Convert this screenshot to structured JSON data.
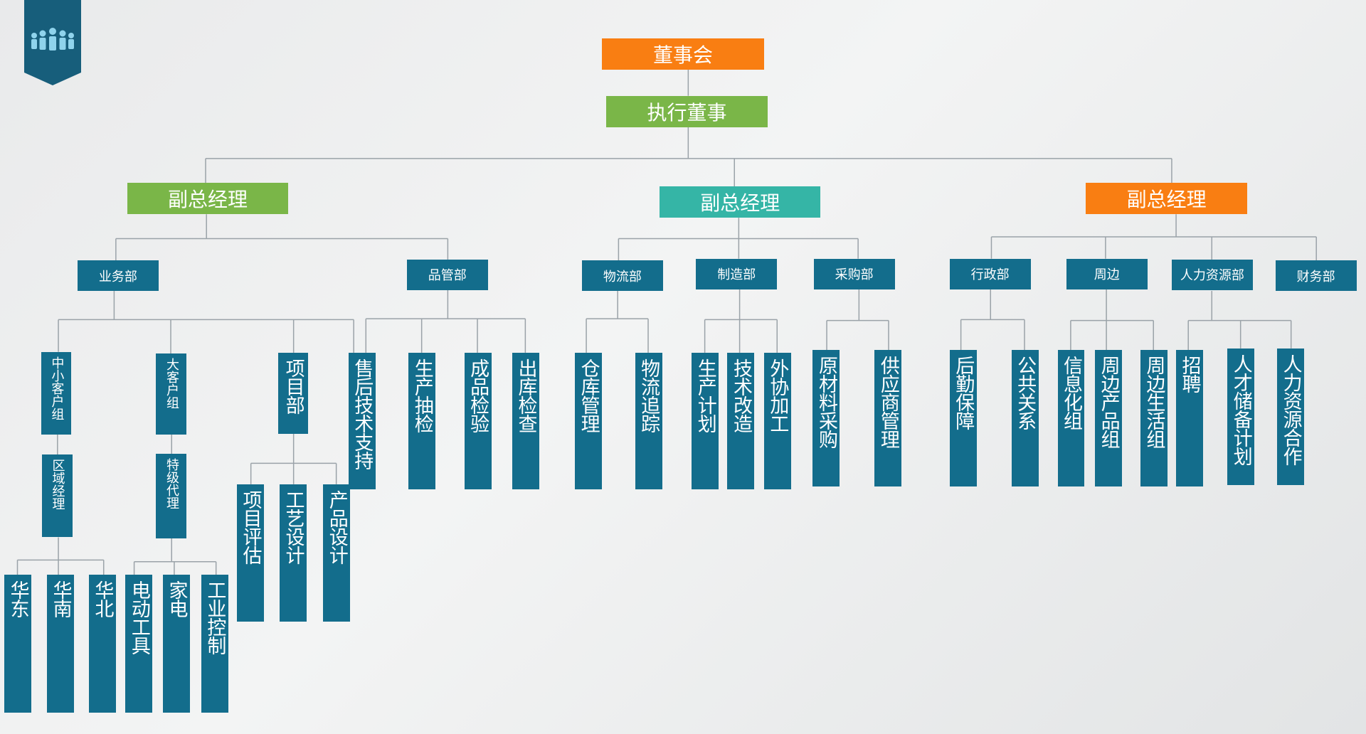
{
  "colors": {
    "orange": "#f97e12",
    "green": "#7ab648",
    "teal": "#35b5a6",
    "blue": "#136d8c",
    "line": "#9aa2a8",
    "badge": "#175e7b"
  },
  "badge": {
    "icon": "people-icon"
  },
  "nodes": [
    {
      "id": "board",
      "label": "董事会",
      "kind": "lvl0",
      "color": "orange"
    },
    {
      "id": "exec",
      "label": "执行董事",
      "kind": "lvl1",
      "color": "green"
    },
    {
      "id": "vp1",
      "label": "副总经理",
      "kind": "lvl2",
      "color": "green"
    },
    {
      "id": "vp2",
      "label": "副总经理",
      "kind": "lvl2",
      "color": "teal"
    },
    {
      "id": "vp3",
      "label": "副总经理",
      "kind": "lvl2",
      "color": "orange"
    },
    {
      "id": "yewu",
      "label": "业务部",
      "kind": "dept",
      "color": "blue"
    },
    {
      "id": "pinguan",
      "label": "品管部",
      "kind": "dept",
      "color": "blue"
    },
    {
      "id": "wuliu",
      "label": "物流部",
      "kind": "dept",
      "color": "blue"
    },
    {
      "id": "zhizao",
      "label": "制造部",
      "kind": "dept",
      "color": "blue"
    },
    {
      "id": "caigou",
      "label": "采购部",
      "kind": "dept",
      "color": "blue"
    },
    {
      "id": "xingzheng",
      "label": "行政部",
      "kind": "dept",
      "color": "blue"
    },
    {
      "id": "zhoubian",
      "label": "周边",
      "kind": "dept",
      "color": "blue"
    },
    {
      "id": "renli",
      "label": "人力资源部",
      "kind": "dept",
      "color": "blue"
    },
    {
      "id": "caiwu",
      "label": "财务部",
      "kind": "dept",
      "color": "blue"
    },
    {
      "id": "zhongxiao",
      "label": "中小客户组",
      "kind": "vsmall",
      "color": "blue"
    },
    {
      "id": "quyu",
      "label": "区域经理",
      "kind": "vsmall",
      "color": "blue"
    },
    {
      "id": "huadong",
      "label": "华东",
      "kind": "v",
      "color": "blue"
    },
    {
      "id": "huanan",
      "label": "华南",
      "kind": "v",
      "color": "blue"
    },
    {
      "id": "huabei",
      "label": "华北",
      "kind": "v",
      "color": "blue"
    },
    {
      "id": "dakehu",
      "label": "大客户组",
      "kind": "vsmall",
      "color": "blue"
    },
    {
      "id": "teji",
      "label": "特级代理",
      "kind": "vsmall",
      "color": "blue"
    },
    {
      "id": "diandong",
      "label": "电动工具",
      "kind": "v",
      "color": "blue"
    },
    {
      "id": "jiadian",
      "label": "家电",
      "kind": "v",
      "color": "blue"
    },
    {
      "id": "gongye",
      "label": "工业控制",
      "kind": "v",
      "color": "blue"
    },
    {
      "id": "xiangmubu",
      "label": "项目部",
      "kind": "v",
      "color": "blue"
    },
    {
      "id": "pinggu",
      "label": "项目评估",
      "kind": "v",
      "color": "blue"
    },
    {
      "id": "gongyi",
      "label": "工艺设计",
      "kind": "v",
      "color": "blue"
    },
    {
      "id": "chanpinsj",
      "label": "产品设计",
      "kind": "v",
      "color": "blue"
    },
    {
      "id": "shouhou",
      "label": "售后技术支持",
      "kind": "v",
      "color": "blue"
    },
    {
      "id": "choujian",
      "label": "生产抽检",
      "kind": "v",
      "color": "blue"
    },
    {
      "id": "chengpin",
      "label": "成品检验",
      "kind": "v",
      "color": "blue"
    },
    {
      "id": "chuku",
      "label": "出库检查",
      "kind": "v",
      "color": "blue"
    },
    {
      "id": "cangku",
      "label": "仓库管理",
      "kind": "v",
      "color": "blue"
    },
    {
      "id": "zhuizong",
      "label": "物流追踪",
      "kind": "v",
      "color": "blue"
    },
    {
      "id": "jihua",
      "label": "生产计划",
      "kind": "v",
      "color": "blue"
    },
    {
      "id": "gaizao",
      "label": "技术改造",
      "kind": "v",
      "color": "blue"
    },
    {
      "id": "waixie",
      "label": "外协加工",
      "kind": "v",
      "color": "blue"
    },
    {
      "id": "yuancailiao",
      "label": "原材料采购",
      "kind": "v",
      "color": "blue"
    },
    {
      "id": "gongying",
      "label": "供应商管理",
      "kind": "v",
      "color": "blue"
    },
    {
      "id": "houqin",
      "label": "后勤保障",
      "kind": "v",
      "color": "blue"
    },
    {
      "id": "gonggong",
      "label": "公共关系",
      "kind": "v",
      "color": "blue"
    },
    {
      "id": "xinxi",
      "label": "信息化组",
      "kind": "v",
      "color": "blue"
    },
    {
      "id": "zbchanpin",
      "label": "周边产品组",
      "kind": "v",
      "color": "blue"
    },
    {
      "id": "zbshenghuo",
      "label": "周边生活组",
      "kind": "v",
      "color": "blue"
    },
    {
      "id": "zhaopin",
      "label": "招聘",
      "kind": "v",
      "color": "blue"
    },
    {
      "id": "rencai",
      "label": "人才储备计划",
      "kind": "v",
      "color": "blue"
    },
    {
      "id": "hezuo",
      "label": "人力资源合作",
      "kind": "v",
      "color": "blue"
    }
  ]
}
